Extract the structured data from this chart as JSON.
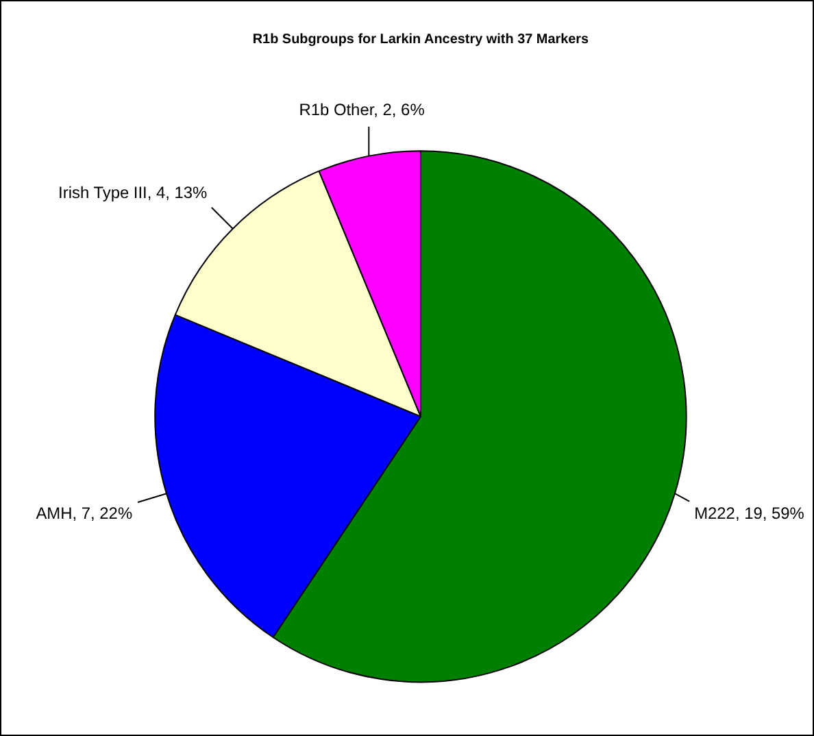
{
  "chart_data": {
    "type": "pie",
    "title": "R1b Subgroups for Larkin Ancestry with 37 Markers",
    "categories": [
      "M222",
      "AMH",
      "Irish Type III",
      "R1b Other"
    ],
    "values": [
      19,
      7,
      4,
      2
    ],
    "colors": [
      "#008000",
      "#0000ff",
      "#ffffcc",
      "#ff00ff"
    ],
    "value_labels": [
      "19, 59%",
      "7, 22%",
      "4, 13%",
      "2, 6%"
    ],
    "legend": false
  }
}
